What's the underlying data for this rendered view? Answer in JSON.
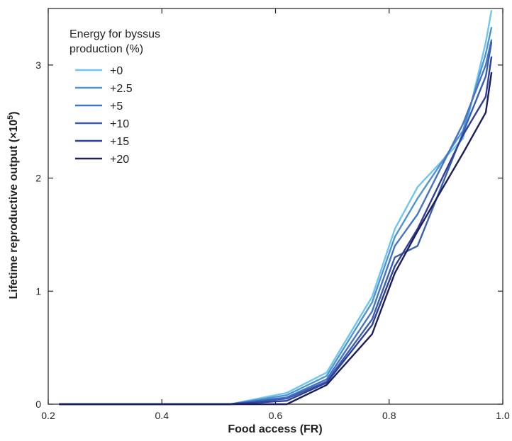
{
  "chart_data": {
    "type": "line",
    "xlabel": "Food access (FR)",
    "ylabel_main": "Lifetime reproductive output (",
    "ylabel_mult": "×10",
    "ylabel_exp": "5",
    "ylabel_close": ")",
    "xlim": [
      0.2,
      1.0
    ],
    "ylim": [
      0,
      3.5
    ],
    "x_ticks": [
      0.2,
      0.4,
      0.6,
      0.8,
      1.0
    ],
    "x_tick_labels": [
      "0.2",
      "0.4",
      "0.6",
      "0.8",
      "1.0"
    ],
    "y_ticks": [
      0,
      1,
      2,
      3
    ],
    "y_tick_labels": [
      "0",
      "1",
      "2",
      "3"
    ],
    "legend_title_line1": "Energy for byssus",
    "legend_title_line2": "production (%)",
    "legend_position": "top-left",
    "x": [
      0.22,
      0.52,
      0.62,
      0.69,
      0.77,
      0.81,
      0.85,
      0.93,
      0.97,
      0.98
    ],
    "series": [
      {
        "name": "+0",
        "color": "#6ec6ea",
        "values": [
          0,
          0,
          0.1,
          0.28,
          0.95,
          1.55,
          1.92,
          2.35,
          3.2,
          3.48
        ]
      },
      {
        "name": "+2.5",
        "color": "#4f93d4",
        "values": [
          0,
          0,
          0.08,
          0.25,
          0.9,
          1.48,
          1.82,
          2.42,
          3.1,
          3.33
        ]
      },
      {
        "name": "+5",
        "color": "#4674c0",
        "values": [
          0,
          0,
          0.06,
          0.22,
          0.82,
          1.4,
          1.68,
          2.48,
          3.0,
          3.22
        ]
      },
      {
        "name": "+10",
        "color": "#3a5fb0",
        "values": [
          0,
          0,
          0.05,
          0.2,
          0.75,
          1.3,
          1.4,
          2.4,
          2.9,
          3.2
        ]
      },
      {
        "name": "+15",
        "color": "#2e3f9a",
        "values": [
          0,
          0,
          0.03,
          0.19,
          0.7,
          1.22,
          1.55,
          2.38,
          2.72,
          3.07
        ]
      },
      {
        "name": "+20",
        "color": "#1b1f5a",
        "values": [
          0,
          0,
          0.0,
          0.17,
          0.62,
          1.16,
          1.53,
          2.22,
          2.58,
          2.93
        ]
      }
    ]
  }
}
